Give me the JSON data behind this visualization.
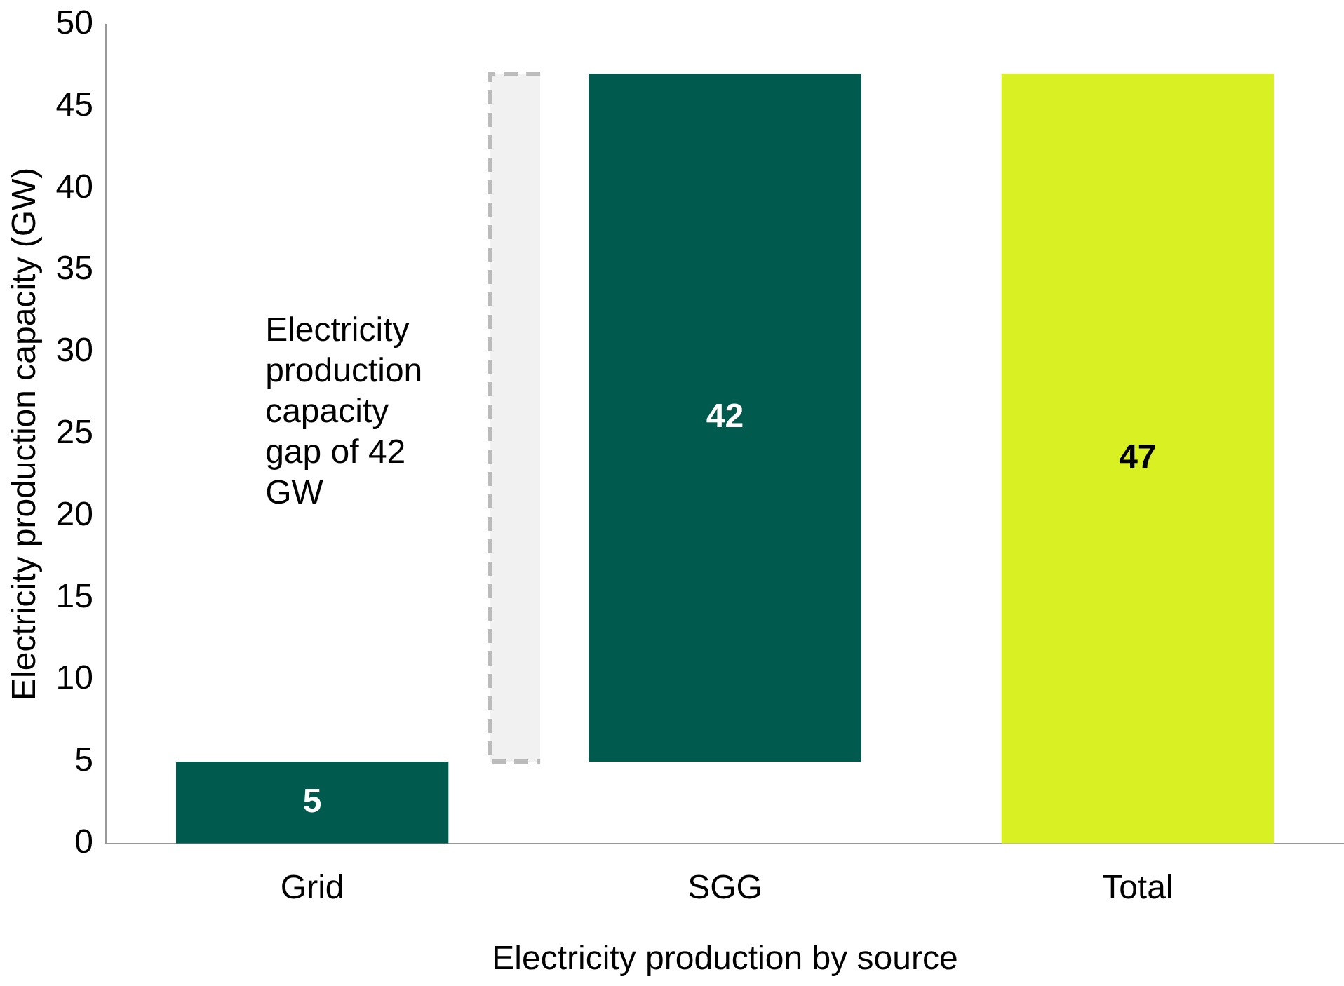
{
  "chart_data": {
    "type": "bar",
    "xlabel": "Electricity production by source",
    "ylabel": "Electricity production capacity (GW)",
    "categories": [
      "Grid",
      "SGG",
      "Total"
    ],
    "values": [
      5,
      42,
      47
    ],
    "base": [
      0,
      5,
      0
    ],
    "colors": [
      "#005a4e",
      "#005a4e",
      "#d9f022"
    ],
    "ylim": [
      0,
      50
    ],
    "yticks": [
      0,
      5,
      10,
      15,
      20,
      25,
      30,
      35,
      40,
      45,
      50
    ],
    "grid": false,
    "data_labels": true,
    "bands": [
      {
        "axis": "y",
        "from": 5,
        "to": 47,
        "label": "Electricity production capacity gap of 42 GW",
        "color": "#bbbbbb"
      }
    ]
  }
}
